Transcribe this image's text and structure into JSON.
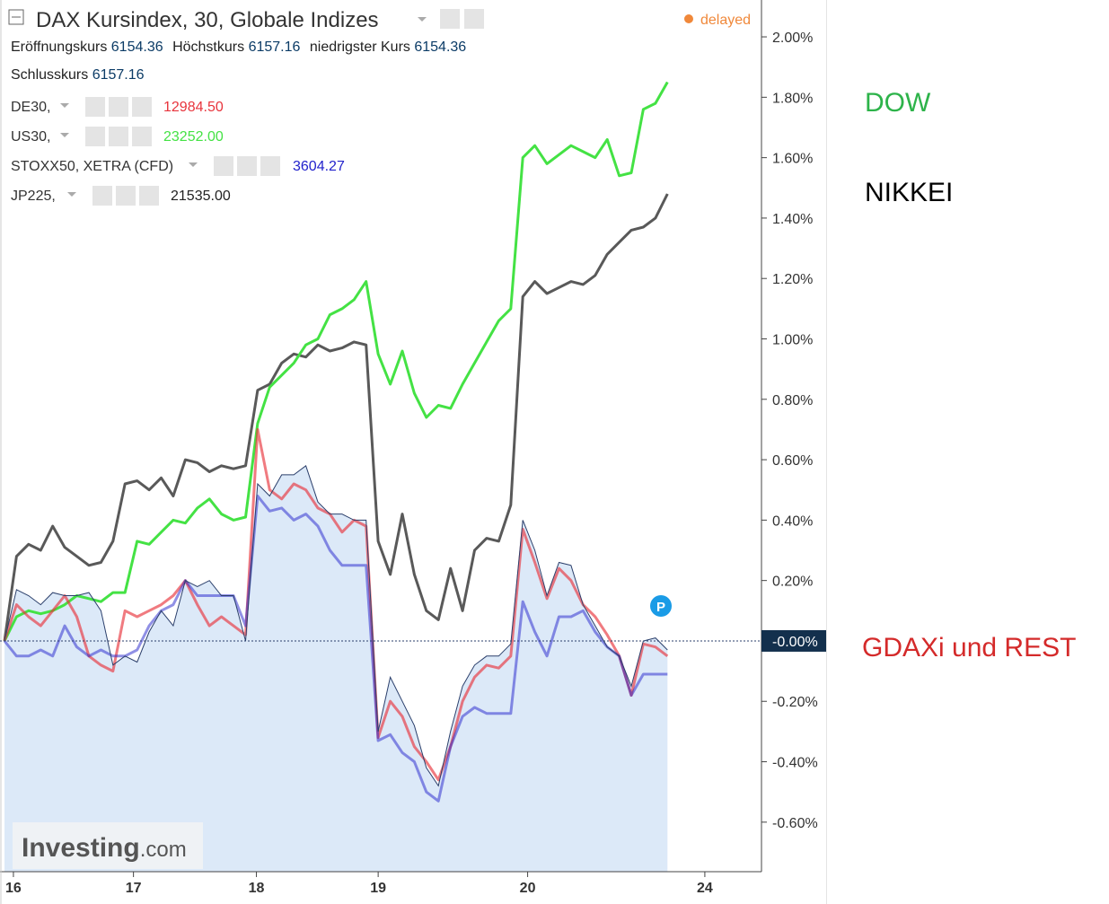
{
  "chart_data": {
    "type": "line",
    "title": "DAX Kursindex, 30, Globale Indizes",
    "status": "delayed",
    "ohlc": [
      {
        "label": "Eröffnungskurs",
        "value": "6154.36"
      },
      {
        "label": "Höchstkurs",
        "value": "6157.16"
      },
      {
        "label": "niedrigster Kurs",
        "value": "6154.36"
      },
      {
        "label": "Schlusskurs",
        "value": "6157.16"
      }
    ],
    "x": [
      0,
      1,
      2,
      3,
      4,
      5,
      6,
      7,
      8,
      9,
      10,
      11,
      12,
      13,
      14,
      15,
      16,
      17,
      18,
      19,
      20,
      21,
      22,
      23,
      24,
      25,
      26,
      27,
      28,
      29,
      30,
      31,
      32,
      33,
      34,
      35,
      36,
      37,
      38,
      39,
      40,
      41,
      42,
      43,
      44,
      45,
      46,
      47,
      48,
      49,
      50,
      51,
      52,
      53,
      54,
      55
    ],
    "xlim": [
      -0.4,
      62.4
    ],
    "xticks": [
      {
        "value": 0.74,
        "label": "16"
      },
      {
        "value": 10.7,
        "label": "17"
      },
      {
        "value": 20.9,
        "label": "18"
      },
      {
        "value": 31.0,
        "label": "19"
      },
      {
        "value": 43.4,
        "label": "20"
      },
      {
        "value": 58.1,
        "label": "24"
      }
    ],
    "ylim": [
      -0.764,
      2.122
    ],
    "yticks": [
      {
        "value": -0.6,
        "label": "-0.60%"
      },
      {
        "value": -0.4,
        "label": "-0.40%"
      },
      {
        "value": -0.2,
        "label": "-0.20%"
      },
      {
        "value": 0.2,
        "label": "0.20%"
      },
      {
        "value": 0.4,
        "label": "0.40%"
      },
      {
        "value": 0.6,
        "label": "0.60%"
      },
      {
        "value": 0.8,
        "label": "0.80%"
      },
      {
        "value": 1.0,
        "label": "1.00%"
      },
      {
        "value": 1.2,
        "label": "1.20%"
      },
      {
        "value": 1.4,
        "label": "1.40%"
      },
      {
        "value": 1.6,
        "label": "1.60%"
      },
      {
        "value": 1.8,
        "label": "1.80%"
      },
      {
        "value": 2.0,
        "label": "2.00%"
      }
    ],
    "current_line": {
      "value": 0,
      "label": "-0.00%"
    },
    "main_series": {
      "color": "#2b3f6b",
      "fill": "#dce9f8",
      "values": [
        0.0,
        0.17,
        0.15,
        0.12,
        0.16,
        0.15,
        0.15,
        0.16,
        0.1,
        -0.08,
        -0.05,
        -0.07,
        0.03,
        0.1,
        0.05,
        0.2,
        0.18,
        0.2,
        0.15,
        0.15,
        0.0,
        0.52,
        0.48,
        0.55,
        0.55,
        0.58,
        0.46,
        0.42,
        0.42,
        0.4,
        0.4,
        -0.3,
        -0.12,
        -0.2,
        -0.28,
        -0.42,
        -0.48,
        -0.3,
        -0.15,
        -0.08,
        -0.05,
        -0.05,
        -0.01,
        0.4,
        0.3,
        0.15,
        0.26,
        0.25,
        0.12,
        0.05,
        -0.02,
        -0.05,
        -0.15,
        0.0,
        0.01,
        -0.03
      ]
    },
    "series": [
      {
        "name": "DE30,",
        "last": "12984.50",
        "color": "#e8343c",
        "values": [
          0.0,
          0.12,
          0.08,
          0.05,
          0.1,
          0.15,
          0.08,
          -0.05,
          -0.08,
          -0.1,
          0.1,
          0.08,
          0.1,
          0.12,
          0.15,
          0.2,
          0.12,
          0.05,
          0.08,
          0.05,
          0.02,
          0.7,
          0.5,
          0.47,
          0.52,
          0.5,
          0.44,
          0.42,
          0.36,
          0.4,
          0.38,
          -0.32,
          -0.2,
          -0.25,
          -0.35,
          -0.4,
          -0.46,
          -0.35,
          -0.2,
          -0.12,
          -0.08,
          -0.09,
          -0.05,
          0.37,
          0.26,
          0.14,
          0.24,
          0.2,
          0.12,
          0.08,
          0.02,
          -0.05,
          -0.18,
          -0.01,
          -0.02,
          -0.05
        ]
      },
      {
        "name": "US30,",
        "last": "23252.00",
        "color": "#44e244",
        "values": [
          0.0,
          0.08,
          0.1,
          0.09,
          0.1,
          0.12,
          0.15,
          0.14,
          0.13,
          0.16,
          0.16,
          0.33,
          0.32,
          0.36,
          0.4,
          0.39,
          0.44,
          0.47,
          0.42,
          0.4,
          0.41,
          0.72,
          0.84,
          0.88,
          0.92,
          0.98,
          1.0,
          1.08,
          1.1,
          1.13,
          1.19,
          0.95,
          0.85,
          0.96,
          0.82,
          0.74,
          0.78,
          0.77,
          0.85,
          0.92,
          0.99,
          1.06,
          1.1,
          1.6,
          1.64,
          1.58,
          1.61,
          1.64,
          1.62,
          1.6,
          1.66,
          1.54,
          1.55,
          1.76,
          1.78,
          1.85
        ]
      },
      {
        "name": "STOXX50, XETRA (CFD)",
        "last": "3604.27",
        "color": "#2222cc",
        "values": [
          0.0,
          -0.05,
          -0.05,
          -0.03,
          -0.05,
          0.05,
          -0.02,
          -0.05,
          -0.03,
          -0.05,
          -0.05,
          -0.03,
          0.05,
          0.1,
          0.12,
          0.2,
          0.15,
          0.15,
          0.15,
          0.15,
          0.05,
          0.48,
          0.43,
          0.44,
          0.4,
          0.42,
          0.38,
          0.3,
          0.25,
          0.25,
          0.25,
          -0.33,
          -0.31,
          -0.37,
          -0.4,
          -0.5,
          -0.53,
          -0.35,
          -0.25,
          -0.22,
          -0.24,
          -0.24,
          -0.24,
          0.13,
          0.03,
          -0.05,
          0.08,
          0.08,
          0.1,
          0.03,
          -0.02,
          -0.05,
          -0.18,
          -0.11,
          -0.11,
          -0.11
        ]
      },
      {
        "name": "JP225,",
        "last": "21535.00",
        "color": "#222222",
        "values": [
          0.0,
          0.28,
          0.32,
          0.3,
          0.38,
          0.31,
          0.28,
          0.25,
          0.26,
          0.33,
          0.52,
          0.53,
          0.5,
          0.54,
          0.48,
          0.6,
          0.59,
          0.56,
          0.58,
          0.57,
          0.58,
          0.83,
          0.85,
          0.92,
          0.95,
          0.94,
          0.98,
          0.96,
          0.97,
          0.99,
          0.98,
          0.33,
          0.22,
          0.42,
          0.22,
          0.1,
          0.07,
          0.24,
          0.1,
          0.3,
          0.34,
          0.33,
          0.45,
          1.14,
          1.19,
          1.15,
          1.17,
          1.19,
          1.18,
          1.21,
          1.28,
          1.32,
          1.36,
          1.37,
          1.4,
          1.48
        ]
      }
    ],
    "marker_label": "P",
    "watermark": {
      "brand": "Investing",
      "suffix": ".com"
    },
    "annotations": [
      {
        "text": "DOW",
        "color": "#2db34a"
      },
      {
        "text": "NIKKEI",
        "color": "#000000"
      },
      {
        "text": "GDAXi und REST",
        "color": "#d42a2a"
      }
    ]
  }
}
